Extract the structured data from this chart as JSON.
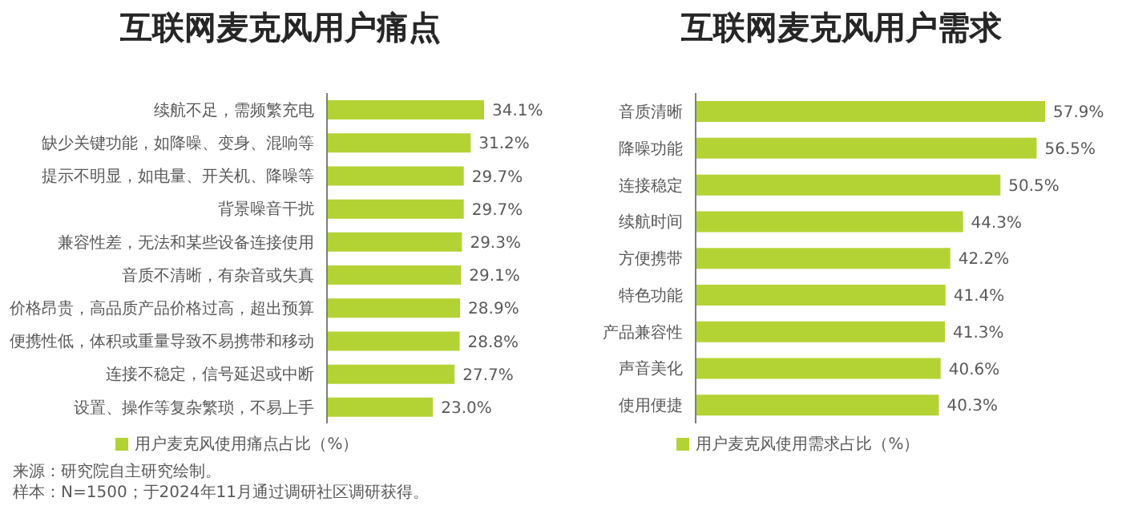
{
  "chart_data": [
    {
      "type": "bar",
      "orientation": "horizontal",
      "title": "互联网麦克风用户痛点",
      "categories": [
        "续航不足，需频繁充电",
        "缺少关键功能，如降噪、变身、混响等",
        "提示不明显，如电量、开关机、降噪等",
        "背景噪音干扰",
        "兼容性差，无法和某些设备连接使用",
        "音质不清晰，有杂音或失真",
        "价格昂贵，高品质产品价格过高，超出预算",
        "便携性低，体积或重量导致不易携带和移动",
        "连接不稳定，信号延迟或中断",
        "设置、操作等复杂繁琐，不易上手"
      ],
      "series": [
        {
          "name": "用户麦克风使用痛点占比（%）",
          "color": "#b3d335",
          "values": [
            34.1,
            31.2,
            29.7,
            29.7,
            29.3,
            29.1,
            28.9,
            28.8,
            27.7,
            23.0
          ],
          "value_labels": [
            "34.1%",
            "31.2%",
            "29.7%",
            "29.7%",
            "29.3%",
            "29.1%",
            "28.9%",
            "28.8%",
            "27.7%",
            "23.0%"
          ]
        }
      ],
      "legend": "bottom",
      "tick_labels": "y",
      "annotations": [
        "来源：研究院自主研究绘制。",
        "样本：N=1500；于2024年11月通过调研社区调研获得。"
      ]
    },
    {
      "type": "bar",
      "orientation": "horizontal",
      "title": "互联网麦克风用户需求",
      "categories": [
        "音质清晰",
        "降噪功能",
        "连接稳定",
        "续航时间",
        "方便携带",
        "特色功能",
        "产品兼容性",
        "声音美化",
        "使用便捷"
      ],
      "series": [
        {
          "name": "用户麦克风使用需求占比（%）",
          "color": "#b3d335",
          "values": [
            57.9,
            56.5,
            50.5,
            44.3,
            42.2,
            41.4,
            41.3,
            40.6,
            40.3
          ],
          "value_labels": [
            "57.9%",
            "56.5%",
            "50.5%",
            "44.3%",
            "42.2%",
            "41.4%",
            "41.3%",
            "40.6%",
            "40.3%"
          ]
        }
      ],
      "legend": "bottom",
      "tick_labels": "y"
    }
  ]
}
